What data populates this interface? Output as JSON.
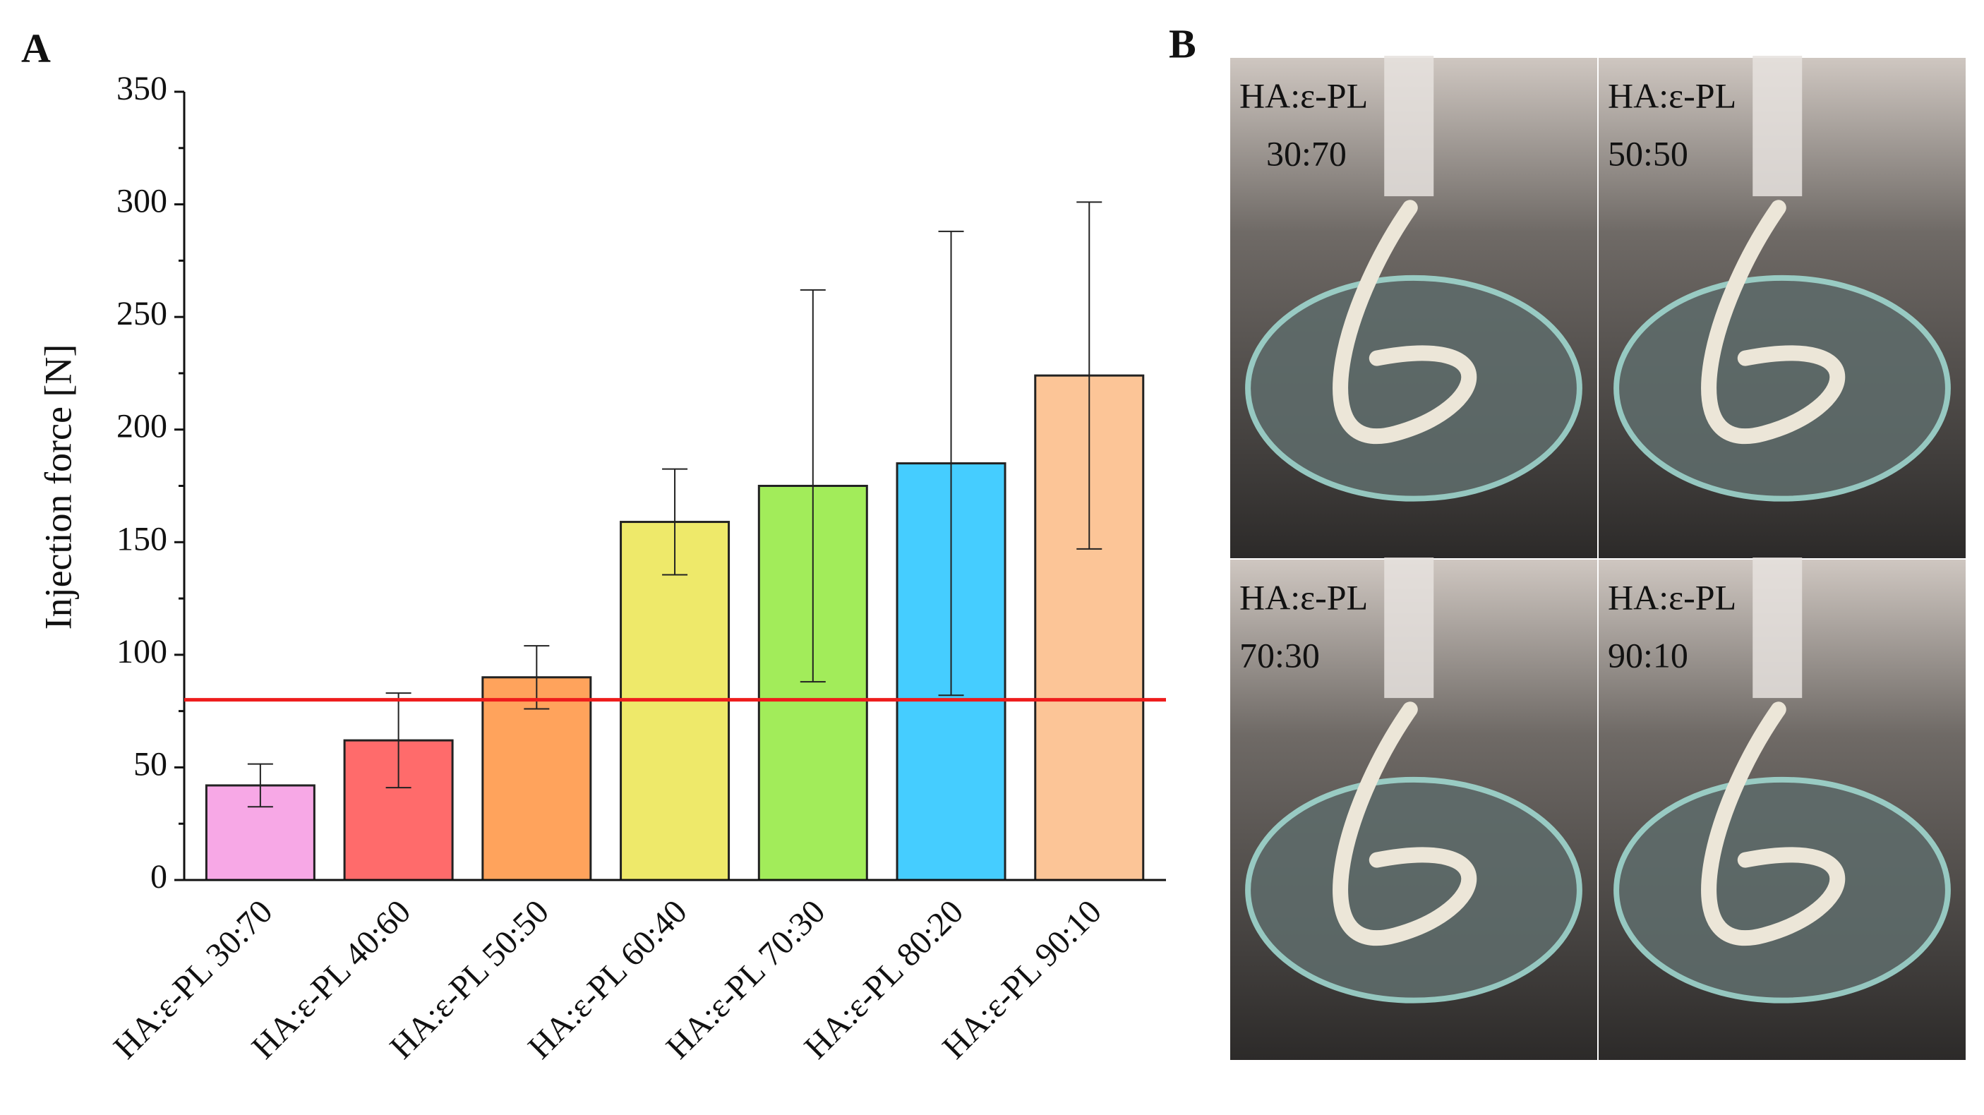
{
  "chart_data": {
    "type": "bar",
    "panel_labels": [
      "A",
      "B"
    ],
    "y_label": "Injection force [N]",
    "categories": [
      "HA:ε-PL 30:70",
      "HA:ε-PL 40:60",
      "HA:ε-PL 50:50",
      "HA:ε-PL 60:40",
      "HA:ε-PL 70:30",
      "HA:ε-PL 80:20",
      "HA:ε-PL 90:10"
    ],
    "values": [
      42,
      62,
      90,
      159,
      175,
      185,
      224
    ],
    "errors": [
      9.5,
      21,
      14,
      23.5,
      87,
      103,
      77
    ],
    "colors": [
      "#f7a8e6",
      "#ff6b6b",
      "#ffa35c",
      "#eee96a",
      "#a2ec5a",
      "#45cdff",
      "#fcc597"
    ],
    "reference_line": 80,
    "reference_color": "#ee1c1c",
    "ylim": [
      0,
      350
    ],
    "yticks": [
      0,
      50,
      100,
      150,
      200,
      250,
      300,
      350
    ],
    "photos": [
      {
        "label": "HA:ε-PL",
        "ratio": "30:70"
      },
      {
        "label": "HA:ε-PL",
        "ratio": "50:50"
      },
      {
        "label": "HA:ε-PL",
        "ratio": "70:30"
      },
      {
        "label": "HA:ε-PL",
        "ratio": "90:10"
      }
    ]
  }
}
